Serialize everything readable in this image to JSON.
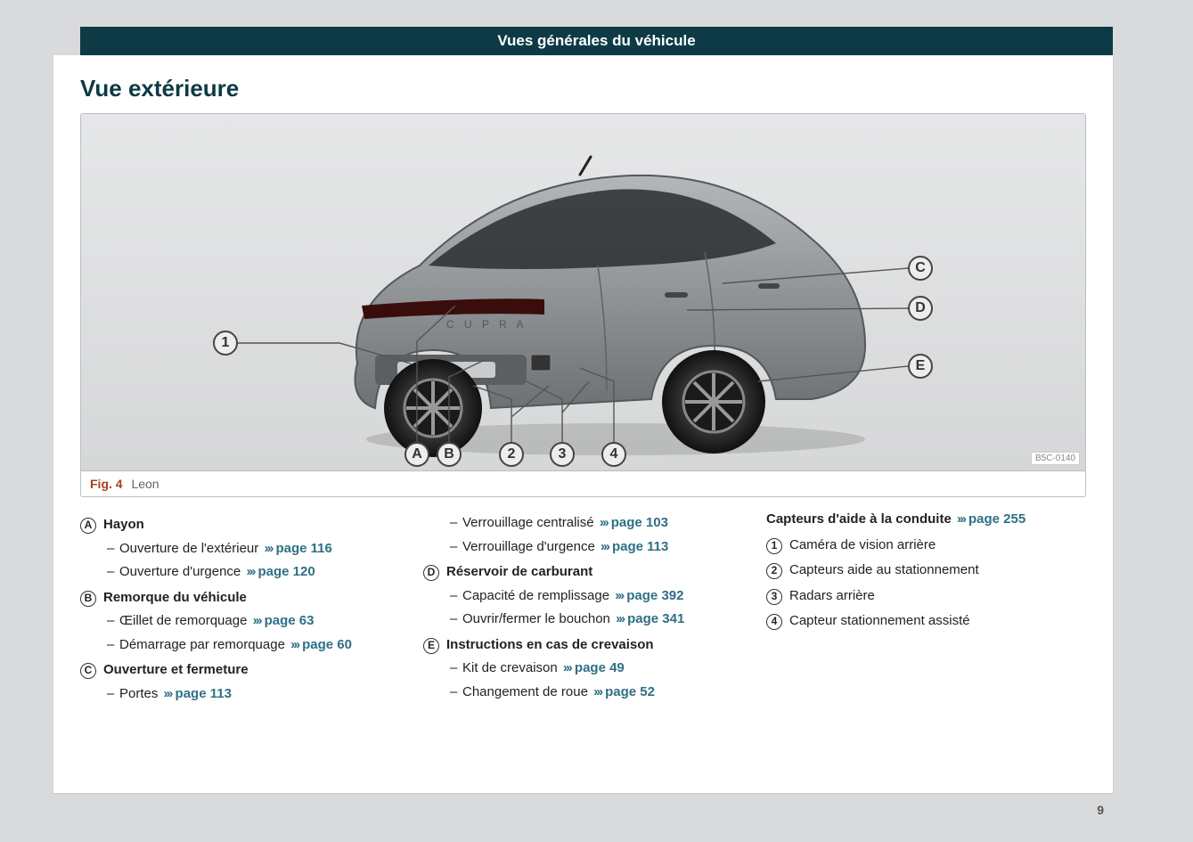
{
  "header": {
    "title": "Vues générales du véhicule"
  },
  "section_title": "Vue extérieure",
  "figure": {
    "number": "Fig. 4",
    "caption": "Leon",
    "image_code": "B5C-0140",
    "callouts_letters": [
      "A",
      "B",
      "C",
      "D",
      "E"
    ],
    "callouts_numbers": [
      "1",
      "2",
      "3",
      "4"
    ]
  },
  "page_number": "9",
  "columns": {
    "left": [
      {
        "type": "heading",
        "marker": "A",
        "text": "Hayon"
      },
      {
        "type": "sub",
        "text": "Ouverture de l'extérieur",
        "page": "116"
      },
      {
        "type": "sub",
        "text": "Ouverture d'urgence",
        "page": "120"
      },
      {
        "type": "heading",
        "marker": "B",
        "text": "Remorque du véhicule"
      },
      {
        "type": "sub",
        "text": "Œillet de remorquage",
        "page": "63"
      },
      {
        "type": "sub",
        "text": "Démarrage par remorquage",
        "page": "60"
      },
      {
        "type": "heading",
        "marker": "C",
        "text": "Ouverture et fermeture"
      },
      {
        "type": "sub",
        "text": "Portes",
        "page": "113"
      }
    ],
    "center": [
      {
        "type": "sub",
        "text": "Verrouillage centralisé",
        "page": "103"
      },
      {
        "type": "sub",
        "text": "Verrouillage d'urgence",
        "page": "113"
      },
      {
        "type": "heading",
        "marker": "D",
        "text": "Réservoir de carburant"
      },
      {
        "type": "sub",
        "text": "Capacité de remplissage",
        "page": "392"
      },
      {
        "type": "sub",
        "text": "Ouvrir/fermer le bouchon",
        "page": "341"
      },
      {
        "type": "heading",
        "marker": "E",
        "text": "Instructions en cas de crevaison"
      },
      {
        "type": "sub",
        "text": "Kit de crevaison",
        "page": "49"
      },
      {
        "type": "sub",
        "text": "Changement de roue",
        "page": "52"
      }
    ],
    "right_title": {
      "text": "Capteurs d'aide à la conduite",
      "page": "255"
    },
    "right": [
      {
        "marker": "1",
        "text": "Caméra de vision arrière"
      },
      {
        "marker": "2",
        "text": "Capteurs aide au stationnement"
      },
      {
        "marker": "3",
        "text": "Radars arrière"
      },
      {
        "marker": "4",
        "text": "Capteur stationnement assisté"
      }
    ]
  },
  "colors": {
    "header_bg": "#0d3a45",
    "page_bg": "#d9dadb",
    "accent": "#a6421d",
    "link": "#2f6f86"
  },
  "labels": {
    "page_prefix": "page "
  }
}
